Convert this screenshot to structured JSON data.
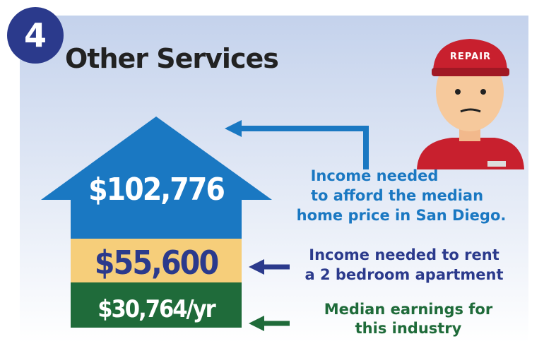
{
  "badge": "4",
  "title": "Other Services",
  "cap_text": "REPAIR",
  "levels": [
    {
      "amount": "$102,776",
      "caption_lines": [
        "Income needed",
        "to afford the median",
        "home price in San Diego."
      ]
    },
    {
      "amount": "$55,600",
      "caption_lines": [
        "Income needed to rent",
        "a 2 bedroom apartment"
      ]
    },
    {
      "amount": "$30,764/yr",
      "caption_lines": [
        "Median earnings for",
        "this industry"
      ]
    }
  ]
}
